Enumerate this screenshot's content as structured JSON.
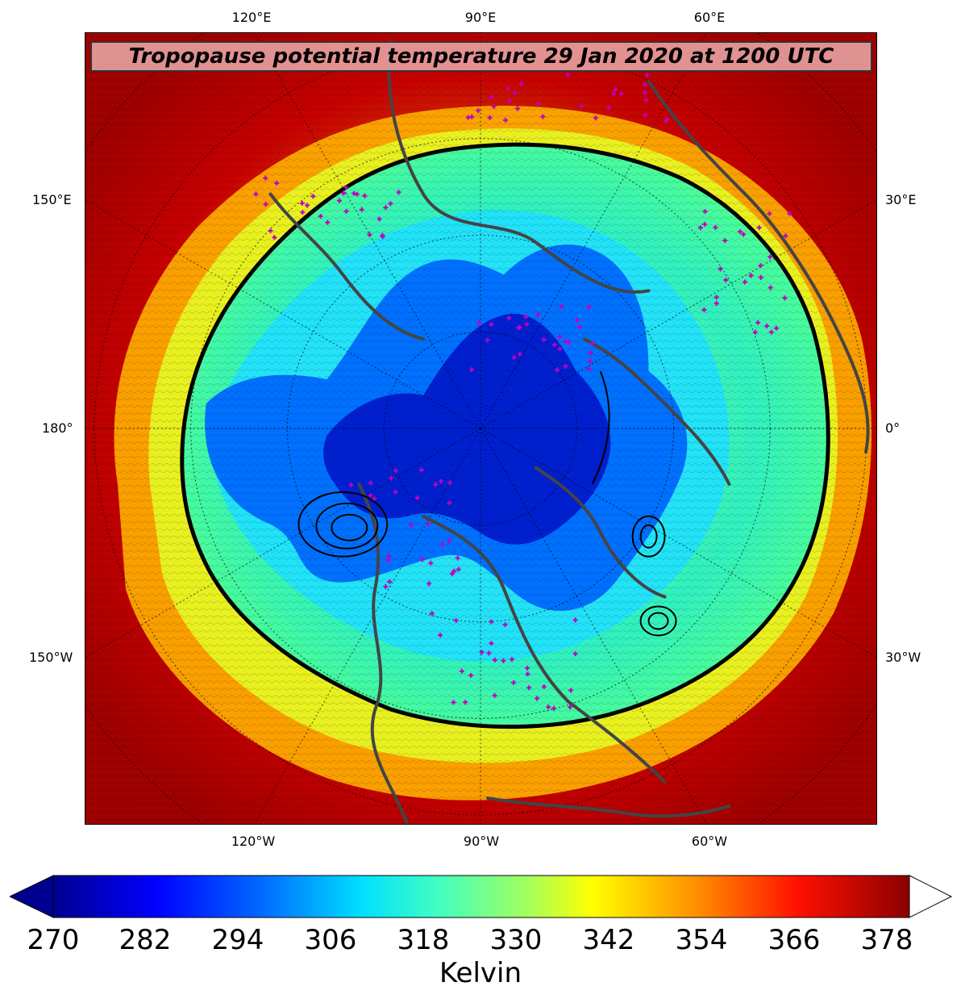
{
  "title": "Tropopause potential temperature 29 Jan 2020 at 1200 UTC",
  "lon_labels_top": [
    "120°E",
    "90°E",
    "60°E"
  ],
  "lon_labels_bottom": [
    "120°W",
    "90°W",
    "60°W"
  ],
  "lat_labels_left": [
    "150°E",
    "180°",
    "150°W"
  ],
  "lat_labels_right": [
    "30°E",
    "0°",
    "30°W"
  ],
  "colorbar": {
    "label": "Kelvin",
    "ticks": [
      "270",
      "282",
      "294",
      "306",
      "318",
      "330",
      "342",
      "354",
      "366",
      "378"
    ],
    "min": 270,
    "max": 381,
    "colormap": "jet",
    "extend": "both"
  },
  "colors": {
    "cold": "#00008f",
    "cool": "#0060ff",
    "mid": "#00e0ff",
    "warm": "#80ff80",
    "yellow": "#ffff00",
    "orange": "#ff8000",
    "hot": "#e00000",
    "coastline": "#444444",
    "markers": "#c000c0"
  }
}
